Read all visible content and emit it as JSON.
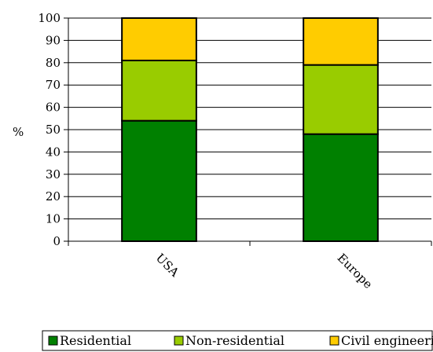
{
  "chart_data": {
    "type": "bar",
    "stacked": true,
    "categories": [
      "USA",
      "Europe"
    ],
    "series": [
      {
        "name": "Residential",
        "values": [
          54,
          48
        ],
        "color": "#008000"
      },
      {
        "name": "Non-residential",
        "values": [
          27,
          31
        ],
        "color": "#99cc00"
      },
      {
        "name": "Civil engineering",
        "values": [
          19,
          21
        ],
        "color": "#ffcc00"
      }
    ],
    "ylabel": "%",
    "ylim": [
      0,
      100
    ],
    "yticks": [
      0,
      10,
      20,
      30,
      40,
      50,
      60,
      70,
      80,
      90,
      100
    ],
    "grid": true,
    "legend": "bottom-right"
  }
}
